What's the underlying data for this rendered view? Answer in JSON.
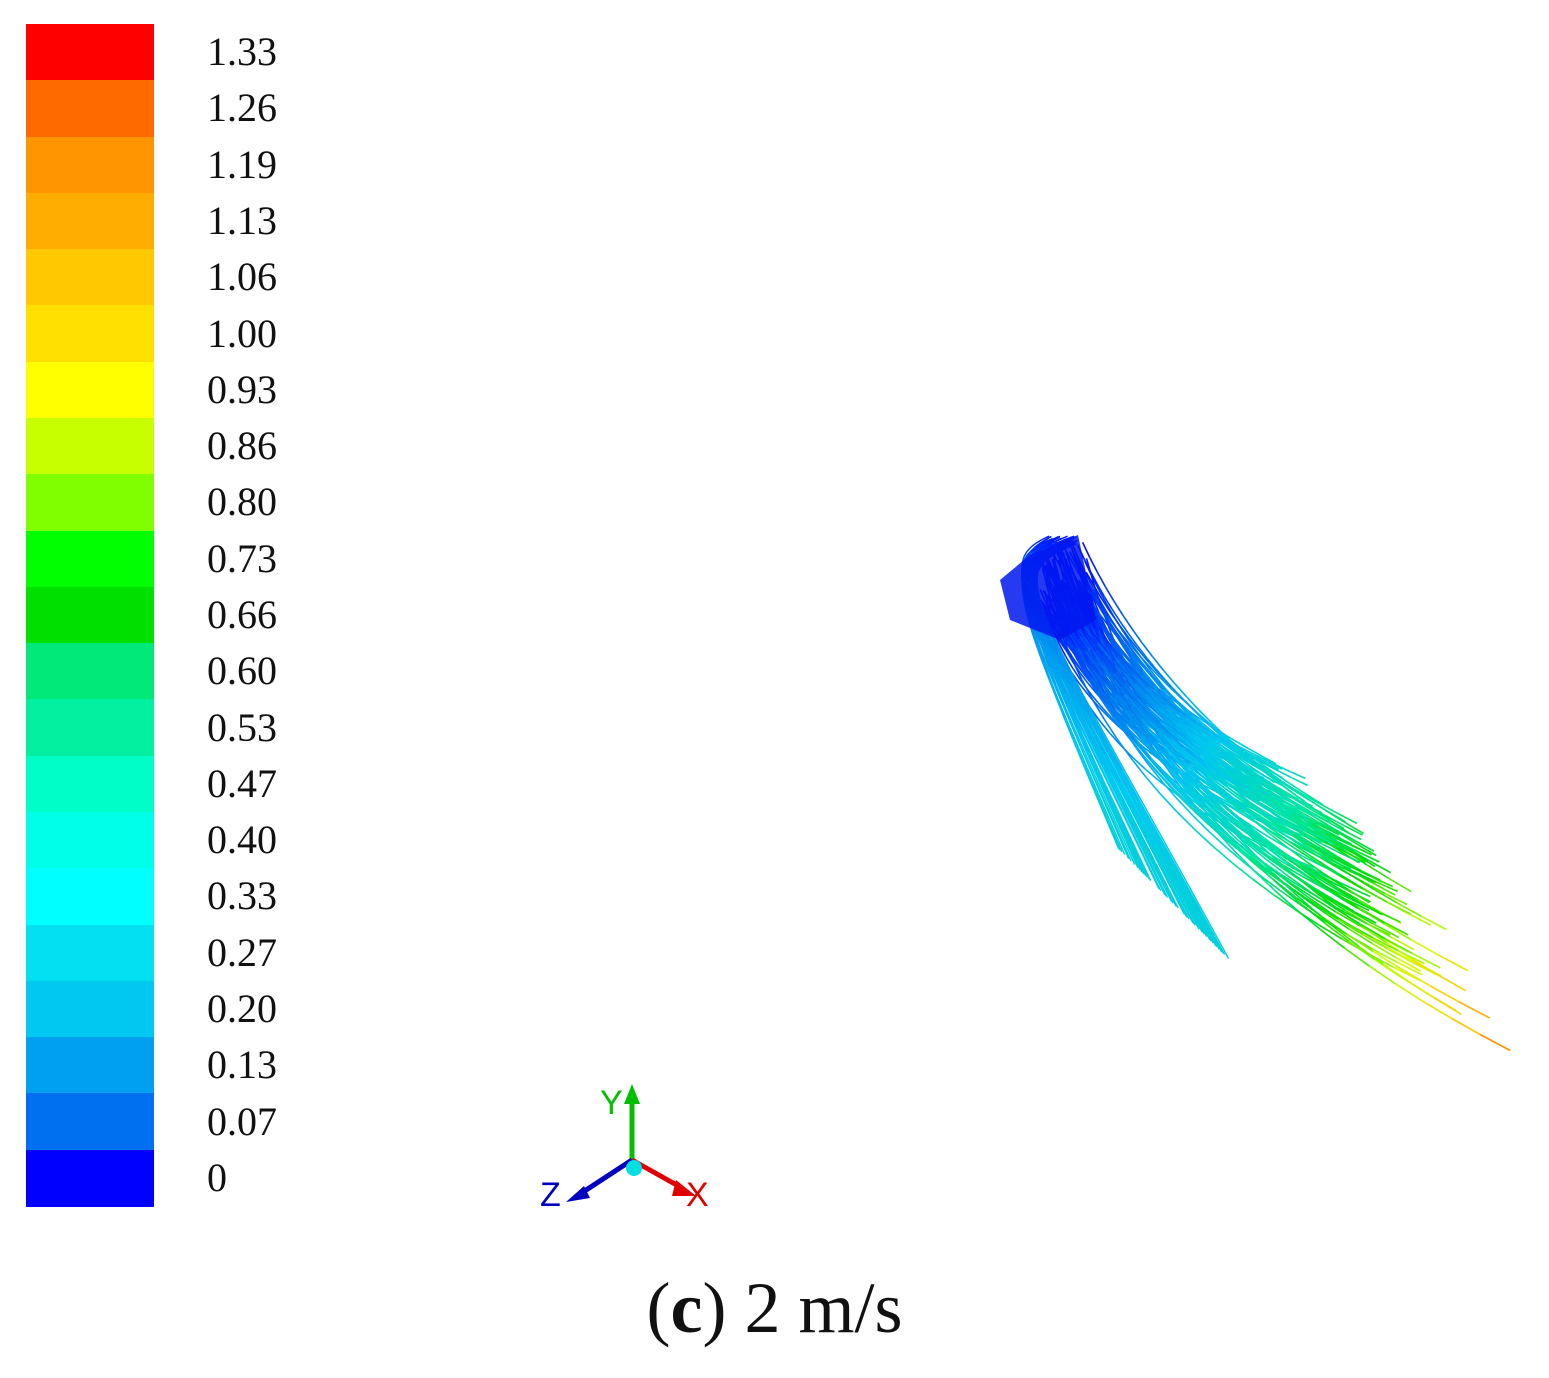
{
  "legend": {
    "labels": [
      "1.33",
      "1.26",
      "1.19",
      "1.13",
      "1.06",
      "1.00",
      "0.93",
      "0.86",
      "0.80",
      "0.73",
      "0.66",
      "0.60",
      "0.53",
      "0.47",
      "0.40",
      "0.33",
      "0.27",
      "0.20",
      "0.13",
      "0.07",
      "0"
    ],
    "colors": [
      "#ff0000",
      "#ff6a00",
      "#ff9500",
      "#ffac00",
      "#ffc800",
      "#ffe000",
      "#ffff00",
      "#c8ff00",
      "#80ff00",
      "#00ff00",
      "#00e000",
      "#00e878",
      "#00f0a0",
      "#00ffc8",
      "#00ffe8",
      "#00ffff",
      "#00e0f0",
      "#00c8f0",
      "#00a0f0",
      "#0070f0",
      "#0000ff"
    ]
  },
  "axes_triad": {
    "x": "X",
    "y": "Y",
    "z": "Z"
  },
  "caption": {
    "letter": "c",
    "text": "2 m/s"
  }
}
